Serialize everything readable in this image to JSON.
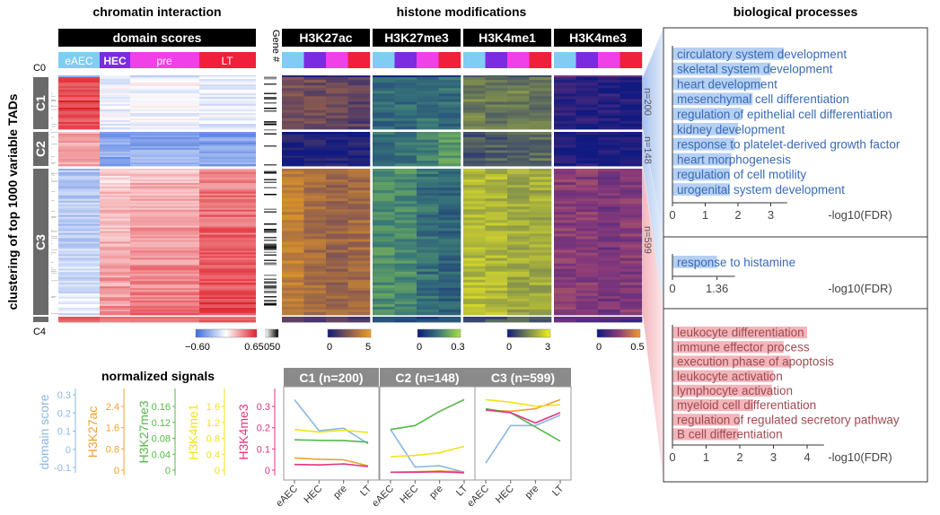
{
  "titles": {
    "chromatin": "chromatin interaction",
    "histone": "histone modifications",
    "bio": "biological processes",
    "normalized": "normalized signals"
  },
  "domain_scores_label": "domain scores",
  "gene_count_label": "Gene #",
  "y_axis_label": "clustering of top 1000 variable TADs",
  "stages": [
    "eAEC",
    "HEC",
    "pre",
    "LT"
  ],
  "stage_colors": [
    "#7fcdf5",
    "#7b2be0",
    "#f040e8",
    "#f0203a"
  ],
  "marks": [
    "H3K27ac",
    "H3K27me3",
    "H3K4me1",
    "H3K4me3"
  ],
  "clusters": [
    {
      "label": "C0"
    },
    {
      "label": "C1",
      "n": "n=200"
    },
    {
      "label": "C2",
      "n": "n=148"
    },
    {
      "label": "C3",
      "n": "n=599"
    },
    {
      "label": "C4"
    }
  ],
  "color_scales": {
    "domain": {
      "min": "−0.60",
      "max": "0.65"
    },
    "gene": {
      "min": "0",
      "max": "50"
    },
    "h3k27ac": {
      "min": "0",
      "max": "5"
    },
    "h3k27me3": {
      "min": "0",
      "max": "0.3"
    },
    "h3k4me1": {
      "min": "0",
      "max": "3"
    },
    "h3k4me3": {
      "min": "0",
      "max": "0.5"
    }
  },
  "go": {
    "xlabel": "-log10(FDR)",
    "panel1": {
      "terms": [
        {
          "term": "circulatory system development",
          "value": 3.4
        },
        {
          "term": "skeletal system development",
          "value": 3.0
        },
        {
          "term": "heart development",
          "value": 2.7
        },
        {
          "term": "mesenchymal cell differentiation",
          "value": 2.45
        },
        {
          "term": "regulation of epithelial cell differentiation",
          "value": 2.1
        },
        {
          "term": "kidney development",
          "value": 2.0
        },
        {
          "term": "response to platelet-derived growth factor",
          "value": 1.9
        },
        {
          "term": "heart morphogenesis",
          "value": 1.8
        },
        {
          "term": "regulation of cell motility",
          "value": 1.75
        },
        {
          "term": "urogenital system development",
          "value": 1.75
        }
      ],
      "ticks": [
        "0",
        "1",
        "2",
        "3"
      ]
    },
    "panel2": {
      "terms": [
        {
          "term": "response to histamine",
          "value": 1.36
        }
      ],
      "ticks": [
        "0",
        "1.36"
      ]
    },
    "panel3": {
      "terms": [
        {
          "term": "leukocyte differentiation",
          "value": 4.0
        },
        {
          "term": "immune effector process",
          "value": 3.3
        },
        {
          "term": "execution phase of apoptosis",
          "value": 3.5
        },
        {
          "term": "leukocyte activation",
          "value": 3.0
        },
        {
          "term": "lymphocyte activation",
          "value": 2.95
        },
        {
          "term": "myeloid cell differentiation",
          "value": 2.4
        },
        {
          "term": "regulation of regulated secretory pathway",
          "value": 2.0
        },
        {
          "term": "B cell differentiation",
          "value": 1.95
        }
      ],
      "ticks": [
        "0",
        "1",
        "2",
        "3",
        "4"
      ]
    }
  },
  "signal_axes": [
    {
      "label": "domain score",
      "color": "#8ab8e6",
      "ticks": [
        "-0.1",
        "0",
        "0.1",
        "0.2",
        "0.3"
      ]
    },
    {
      "label": "H3K27ac",
      "color": "#f0a030",
      "ticks": [
        "0",
        "0.8",
        "1.6",
        "2.4"
      ]
    },
    {
      "label": "H3K27me3",
      "color": "#56b84a",
      "ticks": [
        "0",
        "0.04",
        "0.08",
        "0.12",
        "0.16"
      ]
    },
    {
      "label": "H3K4me1",
      "color": "#f2e21a",
      "ticks": [
        "0",
        "0.4",
        "0.8",
        "1.2",
        "1.6"
      ]
    },
    {
      "label": "H3K4me3",
      "color": "#e03580",
      "ticks": [
        "0",
        "0.1",
        "0.2",
        "0.3"
      ]
    }
  ],
  "chart_data": {
    "type": "line",
    "title": "normalized signals",
    "x": [
      "eAEC",
      "HEC",
      "pre",
      "LT"
    ],
    "ylim": [
      -0.02,
      0.34
    ],
    "yticks": [
      0,
      0.1,
      0.2,
      0.3
    ],
    "panels": [
      {
        "title": "C1 (n=200)",
        "series": [
          {
            "name": "domain score",
            "color": "#8ab8e6",
            "values": [
              0.29,
              0.17,
              0.18,
              0.12
            ]
          },
          {
            "name": "H3K27ac",
            "color": "#f0a030",
            "values": [
              0.065,
              0.06,
              0.058,
              0.035
            ]
          },
          {
            "name": "H3K27me3",
            "color": "#56b84a",
            "values": [
              0.135,
              0.133,
              0.132,
              0.126
            ]
          },
          {
            "name": "H3K4me1",
            "color": "#f2e21a",
            "values": [
              0.175,
              0.165,
              0.172,
              0.163
            ]
          },
          {
            "name": "H3K4me3",
            "color": "#e03580",
            "values": [
              0.04,
              0.038,
              0.042,
              0.032
            ]
          }
        ]
      },
      {
        "title": "C2 (n=148)",
        "series": [
          {
            "name": "domain score",
            "color": "#8ab8e6",
            "values": [
              0.175,
              0.03,
              0.035,
              0.01
            ]
          },
          {
            "name": "H3K27ac",
            "color": "#f0a030",
            "values": [
              0.01,
              0.012,
              0.015,
              0.012
            ]
          },
          {
            "name": "H3K27me3",
            "color": "#56b84a",
            "values": [
              0.175,
              0.19,
              0.245,
              0.29
            ]
          },
          {
            "name": "H3K4me1",
            "color": "#f2e21a",
            "values": [
              0.07,
              0.075,
              0.085,
              0.11
            ]
          },
          {
            "name": "H3K4me3",
            "color": "#e03580",
            "values": [
              0.01,
              0.01,
              0.012,
              0.008
            ]
          }
        ]
      },
      {
        "title": "C3 (n=599)",
        "series": [
          {
            "name": "domain score",
            "color": "#8ab8e6",
            "values": [
              0.045,
              0.19,
              0.19,
              0.23
            ]
          },
          {
            "name": "H3K27ac",
            "color": "#f0a030",
            "values": [
              0.25,
              0.245,
              0.255,
              0.29
            ]
          },
          {
            "name": "H3K27me3",
            "color": "#56b84a",
            "values": [
              0.255,
              0.24,
              0.185,
              0.13
            ]
          },
          {
            "name": "H3K4me1",
            "color": "#f2e21a",
            "values": [
              0.29,
              0.28,
              0.265,
              0.27
            ]
          },
          {
            "name": "H3K4me3",
            "color": "#e03580",
            "values": [
              0.25,
              0.24,
              0.2,
              0.24
            ]
          }
        ]
      }
    ]
  }
}
